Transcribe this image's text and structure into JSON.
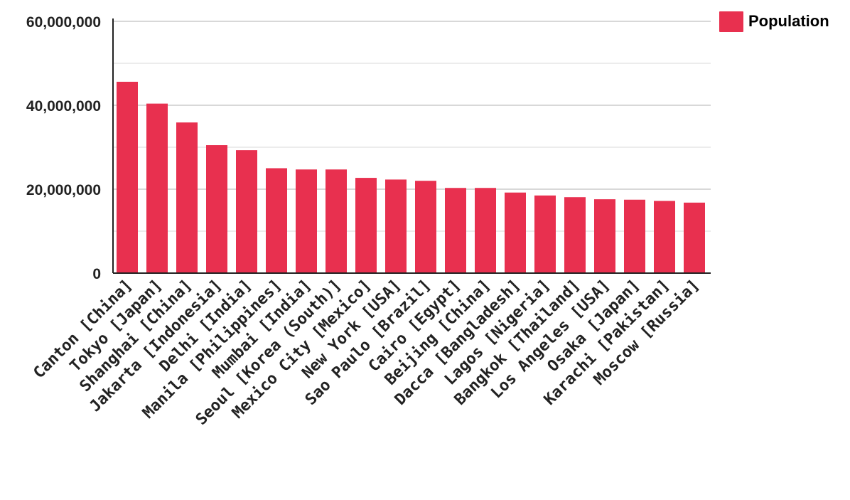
{
  "colors": {
    "bar": "#e8304f",
    "axis": "#222222",
    "grid_major": "#cccccc",
    "grid_minor": "#e6e6e6",
    "text": "#222222"
  },
  "legend": {
    "position": "top-right",
    "entries": [
      {
        "label": "Population",
        "color": "#e8304f"
      }
    ]
  },
  "chart_data": {
    "type": "bar",
    "title": "",
    "xlabel": "",
    "ylabel": "",
    "ylim": [
      0,
      60000000
    ],
    "yticks": [
      0,
      20000000,
      40000000,
      60000000
    ],
    "ytick_labels": [
      "0",
      "20,000,000",
      "40,000,000",
      "60,000,000"
    ],
    "grid": true,
    "categories": [
      "Canton [China]",
      "Tokyo [Japan]",
      "Shanghai [China]",
      "Jakarta [Indonesia]",
      "Delhi [India]",
      "Manila [Philippines]",
      "Mumbai [India]",
      "Seoul [Korea (South)]",
      "Mexico City [Mexico]",
      "New York [USA]",
      "Sao Paulo [Brazil]",
      "Cairo [Egypt]",
      "Beijing [China]",
      "Dacca [Bangladesh]",
      "Lagos [Nigeria]",
      "Bangkok [Thailand]",
      "Los Angeles [USA]",
      "Osaka [Japan]",
      "Karachi [Pakistan]",
      "Moscow [Russia]"
    ],
    "series": [
      {
        "name": "Population",
        "values": [
          45600000,
          40400000,
          35900000,
          30500000,
          29300000,
          25000000,
          24700000,
          24700000,
          22700000,
          22300000,
          22000000,
          20300000,
          20300000,
          19200000,
          18500000,
          18100000,
          17600000,
          17500000,
          17200000,
          16800000
        ]
      }
    ]
  }
}
